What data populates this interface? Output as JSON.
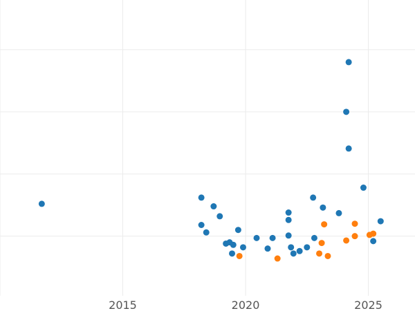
{
  "chart_data": {
    "type": "scatter",
    "title": "",
    "xlabel": "",
    "ylabel": "",
    "xlim": [
      2010.0,
      2026.9
    ],
    "ylim": [
      -0.96,
      3.8
    ],
    "x_ticks": [
      2015,
      2020,
      2025
    ],
    "x_tick_labels": [
      "2015",
      "2020",
      "2025"
    ],
    "y_ticks": [
      0,
      1,
      2,
      3
    ],
    "grid": true,
    "legend": "none",
    "series": [
      {
        "color": "#1f77b4",
        "points": [
          {
            "x": 2011.7,
            "y": 0.52
          },
          {
            "x": 2018.2,
            "y": 0.62
          },
          {
            "x": 2018.2,
            "y": 0.18
          },
          {
            "x": 2018.4,
            "y": 0.06
          },
          {
            "x": 2018.7,
            "y": 0.48
          },
          {
            "x": 2018.95,
            "y": 0.32
          },
          {
            "x": 2019.2,
            "y": -0.12
          },
          {
            "x": 2019.35,
            "y": -0.1
          },
          {
            "x": 2019.45,
            "y": -0.28
          },
          {
            "x": 2019.5,
            "y": -0.14
          },
          {
            "x": 2019.7,
            "y": 0.1
          },
          {
            "x": 2019.9,
            "y": -0.18
          },
          {
            "x": 2020.45,
            "y": -0.03
          },
          {
            "x": 2020.9,
            "y": -0.2
          },
          {
            "x": 2021.1,
            "y": -0.03
          },
          {
            "x": 2021.75,
            "y": 0.38
          },
          {
            "x": 2021.75,
            "y": 0.26
          },
          {
            "x": 2021.75,
            "y": 0.01
          },
          {
            "x": 2021.85,
            "y": -0.18
          },
          {
            "x": 2021.95,
            "y": -0.28
          },
          {
            "x": 2022.2,
            "y": -0.24
          },
          {
            "x": 2022.5,
            "y": -0.18
          },
          {
            "x": 2022.75,
            "y": 0.62
          },
          {
            "x": 2022.8,
            "y": -0.03
          },
          {
            "x": 2023.15,
            "y": 0.46
          },
          {
            "x": 2023.8,
            "y": 0.37
          },
          {
            "x": 2024.1,
            "y": 2.0
          },
          {
            "x": 2024.2,
            "y": 2.8
          },
          {
            "x": 2024.2,
            "y": 1.41
          },
          {
            "x": 2024.8,
            "y": 0.78
          },
          {
            "x": 2025.2,
            "y": -0.08
          },
          {
            "x": 2025.5,
            "y": 0.24
          }
        ]
      },
      {
        "color": "#ff7f0e",
        "points": [
          {
            "x": 2019.75,
            "y": -0.32
          },
          {
            "x": 2021.3,
            "y": -0.36
          },
          {
            "x": 2023.0,
            "y": -0.28
          },
          {
            "x": 2023.1,
            "y": -0.11
          },
          {
            "x": 2023.2,
            "y": 0.19
          },
          {
            "x": 2023.35,
            "y": -0.32
          },
          {
            "x": 2024.1,
            "y": -0.07
          },
          {
            "x": 2024.45,
            "y": 0.2
          },
          {
            "x": 2024.45,
            "y": 0.0
          },
          {
            "x": 2025.05,
            "y": 0.02
          },
          {
            "x": 2025.2,
            "y": 0.04
          }
        ]
      }
    ]
  }
}
